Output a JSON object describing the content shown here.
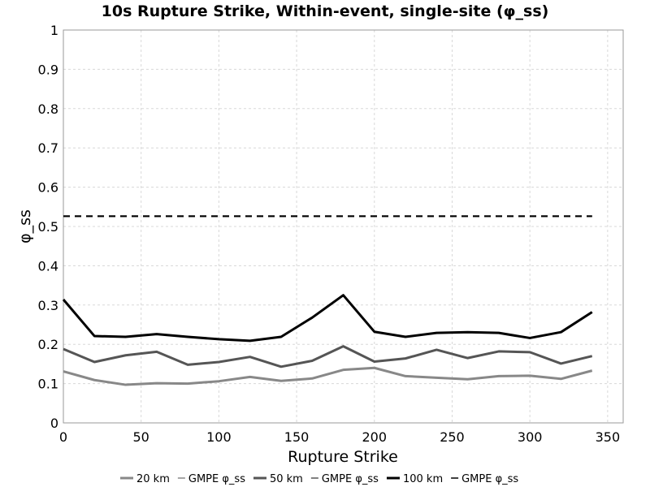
{
  "chart_data": {
    "type": "line",
    "title": "10s Rupture Strike, Within-event, single-site (φ_ss)",
    "xlabel": "Rupture Strike",
    "ylabel": "φ_ss",
    "xlim": [
      0,
      360
    ],
    "ylim": [
      0,
      1
    ],
    "xticks": [
      "0",
      "50",
      "100",
      "150",
      "200",
      "250",
      "300",
      "350"
    ],
    "yticks": [
      "0",
      "0.1",
      "0.2",
      "0.3",
      "0.4",
      "0.5",
      "0.6",
      "0.7",
      "0.8",
      "0.9",
      "1"
    ],
    "grid": true,
    "legend_position": "bottom",
    "x": [
      0,
      20,
      40,
      60,
      80,
      100,
      120,
      140,
      160,
      180,
      200,
      220,
      240,
      260,
      280,
      300,
      320,
      340
    ],
    "series": [
      {
        "name": "20 km",
        "color": "#888888",
        "style": "solid",
        "values": [
          0.131,
          0.109,
          0.097,
          0.101,
          0.1,
          0.106,
          0.117,
          0.107,
          0.113,
          0.135,
          0.14,
          0.119,
          0.115,
          0.111,
          0.119,
          0.12,
          0.112,
          0.133
        ]
      },
      {
        "name": "GMPE φ_ss",
        "color": "#888888",
        "style": "dashed",
        "values": [
          0.526,
          0.526,
          0.526,
          0.526,
          0.526,
          0.526,
          0.526,
          0.526,
          0.526,
          0.526,
          0.526,
          0.526,
          0.526,
          0.526,
          0.526,
          0.526,
          0.526,
          0.526
        ]
      },
      {
        "name": "50 km",
        "color": "#555555",
        "style": "solid",
        "values": [
          0.188,
          0.155,
          0.172,
          0.181,
          0.148,
          0.155,
          0.168,
          0.143,
          0.158,
          0.195,
          0.156,
          0.164,
          0.186,
          0.165,
          0.182,
          0.18,
          0.151,
          0.17
        ]
      },
      {
        "name": "GMPE φ_ss",
        "color": "#555555",
        "style": "dashed",
        "values": [
          0.526,
          0.526,
          0.526,
          0.526,
          0.526,
          0.526,
          0.526,
          0.526,
          0.526,
          0.526,
          0.526,
          0.526,
          0.526,
          0.526,
          0.526,
          0.526,
          0.526,
          0.526
        ]
      },
      {
        "name": "100 km",
        "color": "#000000",
        "style": "solid",
        "values": [
          0.314,
          0.221,
          0.219,
          0.226,
          0.219,
          0.213,
          0.209,
          0.219,
          0.268,
          0.325,
          0.232,
          0.219,
          0.229,
          0.231,
          0.229,
          0.216,
          0.231,
          0.282
        ]
      },
      {
        "name": "GMPE φ_ss",
        "color": "#000000",
        "style": "dashed",
        "values": [
          0.526,
          0.526,
          0.526,
          0.526,
          0.526,
          0.526,
          0.526,
          0.526,
          0.526,
          0.526,
          0.526,
          0.526,
          0.526,
          0.526,
          0.526,
          0.526,
          0.526,
          0.526
        ]
      }
    ]
  }
}
